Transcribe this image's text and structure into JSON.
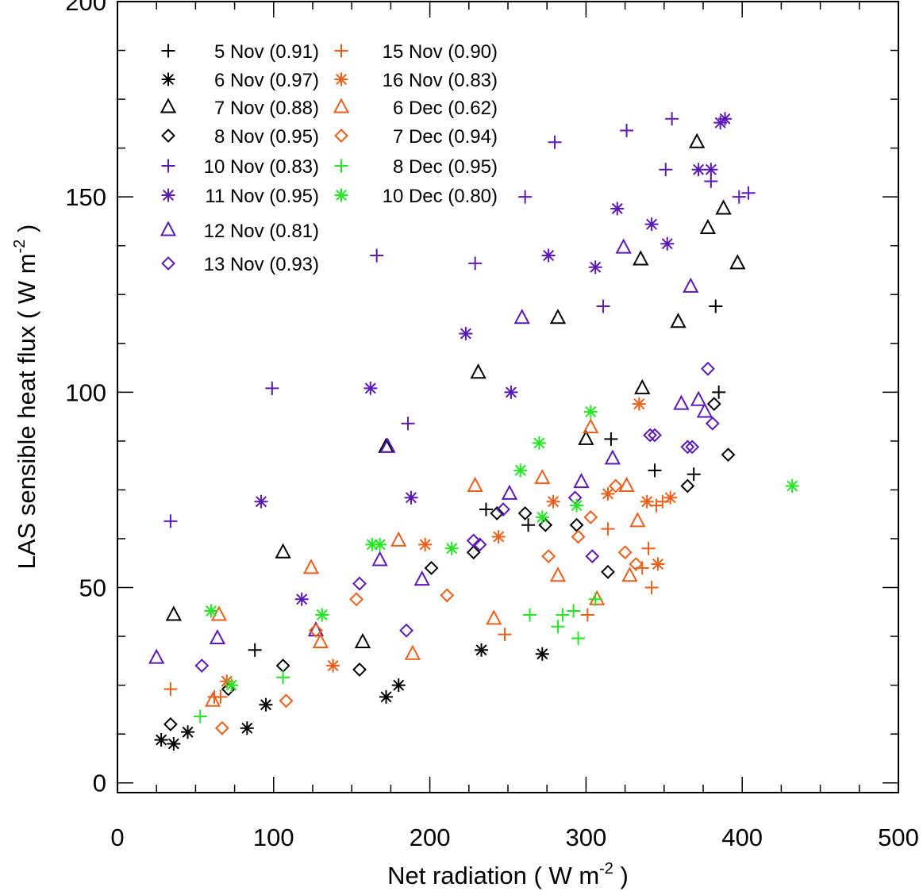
{
  "chart_data": {
    "type": "scatter",
    "title": "",
    "xlabel": "Net radiation ( W m",
    "xlabel_sup": "-2",
    "xlabel_end": " )",
    "ylabel": "LAS sensible heat flux ( W m",
    "ylabel_sup": "-2",
    "ylabel_end": " )",
    "xlim": [
      0,
      500
    ],
    "ylim": [
      -2.5,
      200
    ],
    "x_ticks": [
      0,
      100,
      200,
      300,
      400,
      500
    ],
    "x_tick_labels": [
      "0",
      "100",
      "200",
      "300",
      "400",
      "500"
    ],
    "y_ticks": [
      0,
      50,
      100,
      150,
      200
    ],
    "y_tick_labels": [
      "0",
      "50",
      "100",
      "150",
      "200"
    ],
    "grid": false,
    "legend_position": "top-left",
    "series": [
      {
        "name": "5 Nov (0.91)",
        "marker": "plus",
        "color": "#000000",
        "points": [
          [
            88,
            34
          ],
          [
            236,
            70
          ],
          [
            263,
            66
          ],
          [
            316,
            88
          ],
          [
            344,
            80
          ],
          [
            369,
            79
          ],
          [
            383,
            122
          ],
          [
            385,
            100
          ]
        ]
      },
      {
        "name": "6 Nov (0.97)",
        "marker": "asterisk",
        "color": "#000000",
        "points": [
          [
            28,
            11
          ],
          [
            36,
            10
          ],
          [
            45,
            13
          ],
          [
            83,
            14
          ],
          [
            95,
            20
          ],
          [
            172,
            22
          ],
          [
            180,
            25
          ],
          [
            233,
            34
          ],
          [
            272,
            33
          ]
        ]
      },
      {
        "name": "7 Nov (0.88)",
        "marker": "triangle",
        "color": "#000000",
        "points": [
          [
            36,
            43
          ],
          [
            106,
            59
          ],
          [
            157,
            36
          ],
          [
            172,
            86
          ],
          [
            231,
            105
          ],
          [
            282,
            119
          ],
          [
            300,
            88
          ],
          [
            336,
            101
          ],
          [
            335,
            134
          ],
          [
            359,
            118
          ],
          [
            371,
            164
          ],
          [
            378,
            142
          ],
          [
            388,
            147
          ],
          [
            397,
            133
          ]
        ]
      },
      {
        "name": "8 Nov (0.95)",
        "marker": "diamond",
        "color": "#000000",
        "points": [
          [
            34,
            15
          ],
          [
            71,
            24
          ],
          [
            106,
            30
          ],
          [
            155,
            29
          ],
          [
            201,
            55
          ],
          [
            228,
            59
          ],
          [
            243,
            69
          ],
          [
            261,
            69
          ],
          [
            274,
            66
          ],
          [
            294,
            66
          ],
          [
            314,
            54
          ],
          [
            365,
            76
          ],
          [
            382,
            97
          ],
          [
            391,
            84
          ]
        ]
      },
      {
        "name": "10 Nov (0.83)",
        "marker": "plus",
        "color": "#5B19B8",
        "points": [
          [
            34,
            67
          ],
          [
            99,
            101
          ],
          [
            166,
            135
          ],
          [
            186,
            92
          ],
          [
            229,
            133
          ],
          [
            261,
            150
          ],
          [
            280,
            164
          ],
          [
            311,
            122
          ],
          [
            326,
            167
          ],
          [
            351,
            157
          ],
          [
            355,
            170
          ],
          [
            380,
            154
          ],
          [
            398,
            150
          ],
          [
            404,
            151
          ]
        ]
      },
      {
        "name": "11 Nov (0.95)",
        "marker": "asterisk",
        "color": "#5B19B8",
        "points": [
          [
            92,
            72
          ],
          [
            118,
            47
          ],
          [
            162,
            101
          ],
          [
            188,
            73
          ],
          [
            223,
            115
          ],
          [
            252,
            100
          ],
          [
            276,
            135
          ],
          [
            306,
            132
          ],
          [
            320,
            147
          ],
          [
            342,
            143
          ],
          [
            352,
            138
          ],
          [
            372,
            157
          ],
          [
            380,
            157
          ],
          [
            386,
            169
          ],
          [
            389,
            170
          ]
        ]
      },
      {
        "name": "12 Nov (0.81)",
        "marker": "triangle",
        "color": "#5B19B8",
        "points": [
          [
            25,
            32
          ],
          [
            64,
            37
          ],
          [
            127,
            39
          ],
          [
            168,
            57
          ],
          [
            173,
            86
          ],
          [
            195,
            52
          ],
          [
            251,
            74
          ],
          [
            259,
            119
          ],
          [
            297,
            77
          ],
          [
            317,
            83
          ],
          [
            324,
            137
          ],
          [
            367,
            127
          ],
          [
            361,
            97
          ],
          [
            372,
            98
          ],
          [
            376,
            95
          ]
        ]
      },
      {
        "name": "13 Nov (0.93)",
        "marker": "diamond",
        "color": "#5B19B8",
        "points": [
          [
            54,
            30
          ],
          [
            155,
            51
          ],
          [
            185,
            39
          ],
          [
            228,
            62
          ],
          [
            232,
            61
          ],
          [
            247,
            70
          ],
          [
            293,
            73
          ],
          [
            304,
            58
          ],
          [
            341,
            89
          ],
          [
            344,
            89
          ],
          [
            365,
            86
          ],
          [
            368,
            86
          ],
          [
            378,
            106
          ],
          [
            381,
            92
          ]
        ]
      },
      {
        "name": "15 Nov (0.90)",
        "marker": "plus",
        "color": "#EC5E19",
        "points": [
          [
            34,
            24
          ],
          [
            62,
            22
          ],
          [
            66,
            22
          ],
          [
            248,
            38
          ],
          [
            301,
            43
          ],
          [
            314,
            65
          ],
          [
            336,
            55
          ],
          [
            340,
            60
          ],
          [
            342,
            50
          ],
          [
            345,
            71
          ],
          [
            349,
            72
          ]
        ]
      },
      {
        "name": "16 Nov (0.83)",
        "marker": "asterisk",
        "color": "#EC5E19",
        "points": [
          [
            70,
            26
          ],
          [
            138,
            30
          ],
          [
            197,
            61
          ],
          [
            244,
            63
          ],
          [
            279,
            72
          ],
          [
            314,
            74
          ],
          [
            334,
            97
          ],
          [
            339,
            72
          ],
          [
            346,
            56
          ],
          [
            354,
            73
          ]
        ]
      },
      {
        "name": "6 Dec (0.62)",
        "marker": "triangle",
        "color": "#EC5E19",
        "points": [
          [
            61,
            21
          ],
          [
            65,
            43
          ],
          [
            124,
            55
          ],
          [
            130,
            36
          ],
          [
            180,
            62
          ],
          [
            189,
            33
          ],
          [
            229,
            76
          ],
          [
            241,
            42
          ],
          [
            272,
            78
          ],
          [
            282,
            53
          ],
          [
            303,
            91
          ],
          [
            307,
            47
          ],
          [
            326,
            76
          ],
          [
            328,
            53
          ],
          [
            333,
            67
          ]
        ]
      },
      {
        "name": "7 Dec (0.94)",
        "marker": "diamond",
        "color": "#EC5E19",
        "points": [
          [
            67,
            14
          ],
          [
            108,
            21
          ],
          [
            127,
            39
          ],
          [
            153,
            47
          ],
          [
            211,
            48
          ],
          [
            276,
            58
          ],
          [
            295,
            63
          ],
          [
            303,
            68
          ],
          [
            319,
            76
          ],
          [
            325,
            59
          ],
          [
            332,
            56
          ]
        ]
      },
      {
        "name": "8 Dec (0.95)",
        "marker": "plus",
        "color": "#22E822",
        "points": [
          [
            53,
            17
          ],
          [
            106,
            27
          ],
          [
            264,
            43
          ],
          [
            282,
            40
          ],
          [
            285,
            43
          ],
          [
            292,
            44
          ],
          [
            295,
            37
          ],
          [
            306,
            47
          ]
        ]
      },
      {
        "name": "10 Dec (0.80)",
        "marker": "asterisk",
        "color": "#22E822",
        "points": [
          [
            60,
            44
          ],
          [
            73,
            25
          ],
          [
            131,
            43
          ],
          [
            163,
            61
          ],
          [
            168,
            61
          ],
          [
            214,
            60
          ],
          [
            258,
            80
          ],
          [
            270,
            87
          ],
          [
            272,
            68
          ],
          [
            294,
            71
          ],
          [
            303,
            95
          ],
          [
            432,
            76
          ]
        ]
      }
    ]
  }
}
